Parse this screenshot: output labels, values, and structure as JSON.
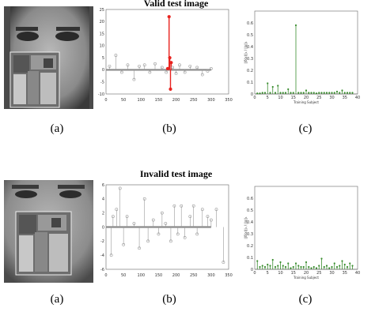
{
  "rows": [
    {
      "title": "Valid test image",
      "captions": [
        "(a)",
        "(b)",
        "(c)"
      ]
    },
    {
      "title": "Invalid test image",
      "captions": [
        "(a)",
        "(b)",
        "(c)"
      ]
    }
  ],
  "chart_data": [
    {
      "id": "valid-coefficients",
      "type": "stem",
      "xlim": [
        0,
        350
      ],
      "ylim": [
        -10,
        25
      ],
      "xticks": [
        0,
        50,
        100,
        150,
        200,
        250,
        300,
        350
      ],
      "yticks": [
        -10,
        -5,
        0,
        5,
        10,
        15,
        20,
        25
      ],
      "highlight_color": "#e8231f",
      "base_color": "#999999",
      "x": [
        10,
        28,
        45,
        62,
        80,
        95,
        110,
        125,
        140,
        160,
        172,
        176,
        180,
        182,
        184,
        186,
        190,
        200,
        210,
        225,
        240,
        260,
        275,
        290,
        300
      ],
      "y": [
        1.5,
        6,
        -1,
        2,
        -4,
        1.5,
        2,
        -1,
        2.5,
        1,
        -1,
        0.5,
        22,
        5,
        -8,
        3,
        1,
        -1.5,
        2,
        -1,
        1.5,
        1,
        -2,
        -0.5,
        0.5
      ],
      "highlight_x_range": [
        176,
        188
      ]
    },
    {
      "id": "valid-residuals",
      "type": "stem",
      "xlabel": "Training Subject",
      "ylabel": "||δ(x)||₁ / ||x||₁",
      "xlim": [
        0,
        40
      ],
      "ylim": [
        0,
        0.7
      ],
      "xticks": [
        0,
        5,
        10,
        15,
        20,
        25,
        30,
        35,
        40
      ],
      "yticks": [
        0,
        0.1,
        0.2,
        0.3,
        0.4,
        0.5,
        0.6
      ],
      "color": "#3a8d2f",
      "x": [
        1,
        2,
        3,
        4,
        5,
        6,
        7,
        8,
        9,
        10,
        11,
        12,
        13,
        14,
        15,
        16,
        17,
        18,
        19,
        20,
        21,
        22,
        23,
        24,
        25,
        26,
        27,
        28,
        29,
        30,
        31,
        32,
        33,
        34,
        35,
        36,
        37,
        38
      ],
      "y": [
        0.005,
        0.005,
        0.01,
        0.01,
        0.09,
        0.01,
        0.06,
        0.01,
        0.07,
        0.01,
        0.01,
        0.01,
        0.04,
        0.01,
        0.01,
        0.58,
        0.01,
        0.01,
        0.01,
        0.03,
        0.01,
        0.01,
        0.01,
        0.005,
        0.01,
        0.01,
        0.01,
        0.01,
        0.01,
        0.01,
        0.01,
        0.02,
        0.01,
        0.03,
        0.01,
        0.01,
        0.01,
        0.01
      ]
    },
    {
      "id": "invalid-coefficients",
      "type": "stem",
      "xlim": [
        0,
        350
      ],
      "ylim": [
        -6,
        6
      ],
      "xticks": [
        0,
        50,
        100,
        150,
        200,
        250,
        300,
        350
      ],
      "yticks": [
        -6,
        -4,
        -2,
        0,
        2,
        4,
        6
      ],
      "base_color": "#999999",
      "x": [
        15,
        20,
        30,
        40,
        50,
        60,
        80,
        95,
        110,
        120,
        135,
        150,
        160,
        170,
        185,
        195,
        205,
        215,
        225,
        240,
        250,
        260,
        275,
        290,
        300,
        315,
        335
      ],
      "y": [
        -4,
        1.5,
        2.5,
        5.5,
        -2.5,
        1.5,
        0.5,
        -3,
        4,
        -2,
        1,
        -1,
        2,
        0.5,
        -2,
        3,
        -1,
        3,
        -1.5,
        1.5,
        3,
        -1,
        2.5,
        1.5,
        1,
        2.5,
        -5
      ]
    },
    {
      "id": "invalid-residuals",
      "type": "stem",
      "xlabel": "Training Subject",
      "ylabel": "||δ(x)||₁ / ||x||₁",
      "xlim": [
        0,
        40
      ],
      "ylim": [
        0,
        0.7
      ],
      "xticks": [
        0,
        5,
        10,
        15,
        20,
        25,
        30,
        35,
        40
      ],
      "yticks": [
        0,
        0.1,
        0.2,
        0.3,
        0.4,
        0.5,
        0.6
      ],
      "color": "#3a8d2f",
      "x": [
        1,
        2,
        3,
        4,
        5,
        6,
        7,
        8,
        9,
        10,
        11,
        12,
        13,
        14,
        15,
        16,
        17,
        18,
        19,
        20,
        21,
        22,
        23,
        24,
        25,
        26,
        27,
        28,
        29,
        30,
        31,
        32,
        33,
        34,
        35,
        36,
        37,
        38
      ],
      "y": [
        0.07,
        0.02,
        0.03,
        0.02,
        0.04,
        0.03,
        0.08,
        0.02,
        0.03,
        0.06,
        0.03,
        0.02,
        0.05,
        0.01,
        0.02,
        0.05,
        0.03,
        0.02,
        0.02,
        0.06,
        0.02,
        0.01,
        0.02,
        0.01,
        0.03,
        0.09,
        0.02,
        0.03,
        0.01,
        0.02,
        0.05,
        0.02,
        0.03,
        0.07,
        0.04,
        0.02,
        0.05,
        0.03
      ]
    }
  ]
}
